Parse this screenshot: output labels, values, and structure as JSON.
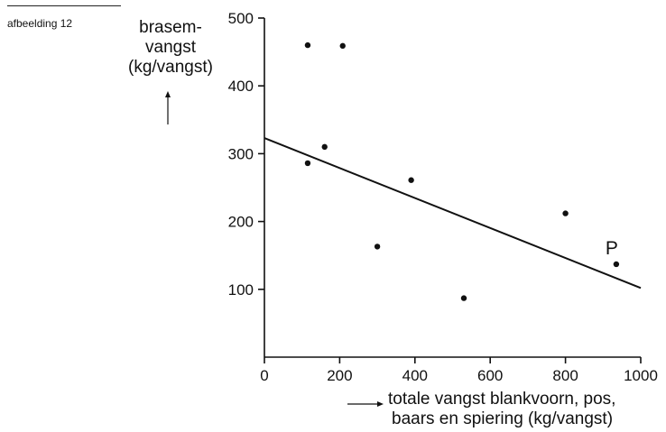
{
  "figure_label": "afbeelding 12",
  "chart_data": {
    "type": "scatter",
    "ylabel_lines": [
      "brasem-",
      "vangst",
      "(kg/vangst)"
    ],
    "xlabel_lines": [
      "totale vangst blankvoorn, pos,",
      "baars en spiering (kg/vangst)"
    ],
    "xlim": [
      0,
      1000
    ],
    "ylim": [
      0,
      500
    ],
    "x_ticks": [
      0,
      200,
      400,
      600,
      800,
      1000
    ],
    "y_ticks": [
      100,
      200,
      300,
      400,
      500
    ],
    "grid": false,
    "points": [
      {
        "x": 115,
        "y": 460
      },
      {
        "x": 208,
        "y": 459
      },
      {
        "x": 160,
        "y": 310
      },
      {
        "x": 115,
        "y": 286
      },
      {
        "x": 390,
        "y": 261
      },
      {
        "x": 300,
        "y": 163
      },
      {
        "x": 530,
        "y": 87
      },
      {
        "x": 800,
        "y": 212
      },
      {
        "x": 935,
        "y": 137
      }
    ],
    "trendline": {
      "x1": 0,
      "y1": 323,
      "x2": 1000,
      "y2": 102
    },
    "annotations": [
      {
        "text": "P",
        "x": 935,
        "y": 137
      }
    ]
  }
}
